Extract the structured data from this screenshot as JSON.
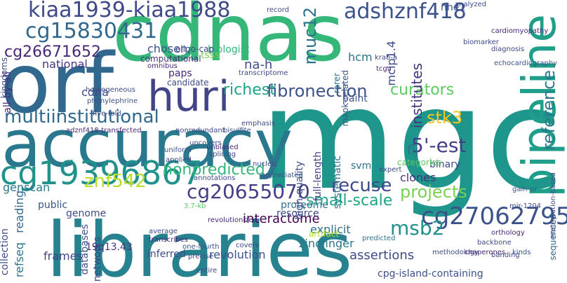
{
  "words": {
    "mgc": "mgc",
    "cdnas": "cdnas",
    "orf": "orf",
    "accuracy": "accuracy",
    "libraries": "libraries",
    "pipeline": "pipeline",
    "huri": "huri",
    "cg19396867": "cg19396867",
    "kiaa": "kiaa1939-kiaa1988",
    "cg15830431": "cg15830431",
    "cg26671652": "cg26671652",
    "adshznf418": "adshznf418",
    "muc12": "muc12",
    "multiinstitutional": "multiinstitutional",
    "cg27062795": "cg27062795",
    "cg20655070": "cg20655070",
    "stk3": "stk3",
    "fibronection": "fibronection",
    "recuse": "recuse",
    "nonpredicted": "nonpredicted",
    "znf542": "znf542",
    "small_scale": "small-scale",
    "projects": "projects",
    "msb2": "msb2",
    "five_est": "5'-est",
    "curators": "curators",
    "richest": "richest",
    "na_h": "na-h",
    "biologist": "biologist",
    "chosen": "chosen",
    "national": "national",
    "interactome": "interactome",
    "zincfinger": "zincfinger",
    "revolution": "revolution",
    "assertions": "assertions",
    "cpg": "cpg-island-containing",
    "frames": "frames",
    "q1943": "19q13.43",
    "inferred": "inferred",
    "explicit": "explicit",
    "artifact": "artifact",
    "flj": "flj",
    "clones": "clones",
    "binary": "binary",
    "categories": "categories",
    "svm": "svm",
    "paint": "paint",
    "reference": "reference",
    "sequenced": "sequenced",
    "institutes": "institutes",
    "mcip": "mcip1.4",
    "hcm": "hcm",
    "nhe1": "nhe1",
    "paps": "paps",
    "candidate": "candidate",
    "tsss": "tsss",
    "cdna": "cdna",
    "genscan": "genscan",
    "reading": "reading",
    "genome": "genome",
    "public": "public",
    "collection": "collection",
    "refseq": "refseq",
    "databases": "databases",
    "networks": "networks",
    "proteome": "proteome",
    "resource": "resource",
    "high_quality": "high-quality",
    "full_length": "full-length",
    "systematic": "systematic",
    "all_by_all": "all-by-all",
    "kingdoms": "kingdoms",
    "computational": "computational",
    "oligo": "oligo-cap",
    "mapk": "mapk-related",
    "rarer": "rarer",
    "krab": "krab-a",
    "tcga": "tcga",
    "record": "record",
    "transcriptome": "transcriptome",
    "omnibus": "omnibus",
    "homogeneous": "homogeneous",
    "phenylephrine": "phenylephrine",
    "fivefold": "five-fold",
    "adznf": "adznf418-transfected",
    "nonredundant": "nonredundant",
    "bisulfite": "bisulfite",
    "emphasis": "emphasis",
    "uncovers": "uncovers",
    "uniform": "uniform",
    "applied": "applied",
    "unbiased": "unbiased",
    "splicing": "splicing",
    "expert": "expert",
    "analyzed": "analyzed",
    "cardiomyopathy": "cardiomyopathy",
    "diagnosis": "diagnosis",
    "echo": "echocardiography",
    "biomarker": "biomarker",
    "methylation": "methylation-based",
    "gainof": "gain-or",
    "mir1204": "mir-1204",
    "orthology": "orthology",
    "backbone": "backbone",
    "kinds": "kinds",
    "banding": "banding",
    "methodology": "methodology",
    "chaperones": "chaperones",
    "predicted": "predicted",
    "covers": "covers",
    "onefourth": "one-fourth",
    "precise": "precise",
    "entire": "entire",
    "average": "average",
    "transcribes": "transcribes",
    "annotations": "annotations",
    "appreciated": "appreciated",
    "nucleic": "nucleic",
    "revolutionized": "revolutionized",
    "kb37": "3.7-kb"
  }
}
